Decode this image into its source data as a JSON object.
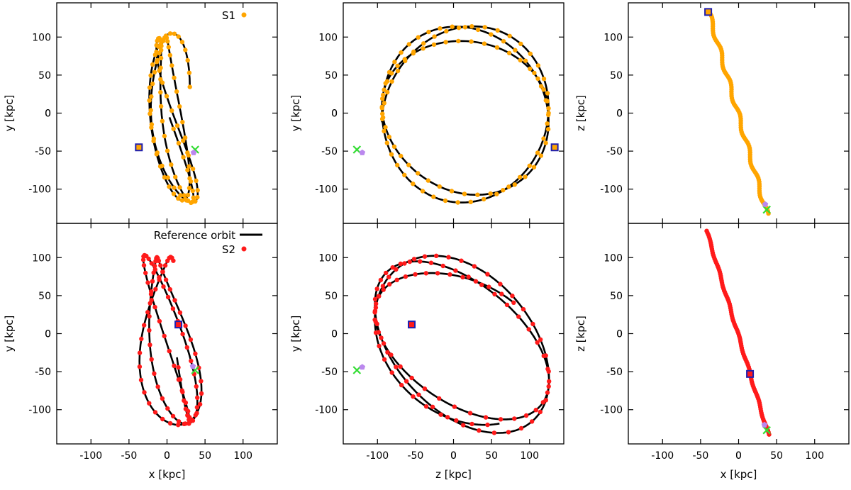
{
  "colors": {
    "s1": "#FFA500",
    "s2": "#FF1A1A",
    "reference": "#000000",
    "start_marker": "#1F1FB0",
    "end_marker": "#33DD33",
    "purple": "#BB88EE"
  },
  "legend": {
    "reference_label": "Reference orbit",
    "s1_label": "S1",
    "s2_label": "S2"
  },
  "chart_data": [
    {
      "type": "scatter",
      "panel": "top-left",
      "xlabel": "",
      "ylabel": "y [kpc]",
      "xlim": [
        -145,
        145
      ],
      "ylim": [
        -145,
        145
      ],
      "xticks": [
        -100,
        -50,
        0,
        50,
        100
      ],
      "yticks": [
        -100,
        -50,
        0,
        50,
        100
      ],
      "show_xticklabels": false,
      "series": [
        {
          "name": "S1",
          "orbit": {
            "a1": 70,
            "a2": 118,
            "a3": 60,
            "w": 3.2,
            "mode": "xy",
            "phase": 0.3
          }
        }
      ],
      "markers": {
        "start": [
          -37,
          -45
        ],
        "end_cross": [
          37,
          -48
        ],
        "end_purple": [
          35,
          -52
        ]
      }
    },
    {
      "type": "scatter",
      "panel": "top-middle",
      "xlabel": "",
      "ylabel": "y [kpc]",
      "xlim": [
        -145,
        145
      ],
      "ylim": [
        -145,
        145
      ],
      "xticks": [
        -100,
        -50,
        0,
        50,
        100
      ],
      "yticks": [
        -100,
        -50,
        0,
        50,
        100
      ],
      "show_xticklabels": false,
      "series": [
        {
          "name": "S1",
          "orbit": {
            "a1": 125,
            "a2": 120,
            "a3": 60,
            "w": 2.5,
            "mode": "zy",
            "phase": 0.0
          }
        }
      ],
      "markers": {
        "start": [
          133,
          -45
        ],
        "end_cross": [
          -127,
          -48
        ],
        "end_purple": [
          -120,
          -52
        ]
      }
    },
    {
      "type": "scatter",
      "panel": "top-right",
      "xlabel": "",
      "ylabel": "z [kpc]",
      "xlim": [
        -145,
        145
      ],
      "ylim": [
        -145,
        145
      ],
      "xticks": [
        -100,
        -50,
        0,
        50,
        100
      ],
      "yticks": [
        -100,
        -50,
        0,
        50,
        100
      ],
      "show_xticklabels": false,
      "series": [
        {
          "name": "S1",
          "orbit": {
            "line": true,
            "x0": -40,
            "y0": 135,
            "x1": 38,
            "y1": -135,
            "spread": 10
          }
        }
      ],
      "markers": {
        "start": [
          -40,
          133
        ],
        "end_cross": [
          37,
          -127
        ],
        "end_purple": [
          35,
          -120
        ]
      }
    },
    {
      "type": "scatter",
      "panel": "bottom-left",
      "xlabel": "x [kpc]",
      "ylabel": "y [kpc]",
      "xlim": [
        -145,
        145
      ],
      "ylim": [
        -145,
        145
      ],
      "xticks": [
        -100,
        -50,
        0,
        50,
        100
      ],
      "yticks": [
        -100,
        -50,
        0,
        50,
        100
      ],
      "show_xticklabels": true,
      "series": [
        {
          "name": "S2",
          "orbit": {
            "a1": 60,
            "a2": 120,
            "a3": 80,
            "w": 3.0,
            "mode": "xy",
            "phase": 1.2
          }
        }
      ],
      "markers": {
        "start": [
          15,
          12
        ],
        "end_cross": [
          37,
          -48
        ],
        "end_purple": [
          34,
          -43
        ]
      }
    },
    {
      "type": "scatter",
      "panel": "bottom-middle",
      "xlabel": "z [kpc]",
      "ylabel": "y [kpc]",
      "xlim": [
        -145,
        145
      ],
      "ylim": [
        -145,
        145
      ],
      "xticks": [
        -100,
        -50,
        0,
        50,
        100
      ],
      "yticks": [
        -100,
        -50,
        0,
        50,
        100
      ],
      "show_xticklabels": true,
      "series": [
        {
          "name": "S2",
          "orbit": {
            "a1": 130,
            "a2": 120,
            "a3": 80,
            "w": 2.7,
            "mode": "zy",
            "phase": 0.8
          }
        }
      ],
      "markers": {
        "start": [
          -55,
          12
        ],
        "end_cross": [
          -127,
          -48
        ],
        "end_purple": [
          -120,
          -44
        ]
      }
    },
    {
      "type": "scatter",
      "panel": "bottom-right",
      "xlabel": "x [kpc]",
      "ylabel": "z [kpc]",
      "xlim": [
        -145,
        145
      ],
      "ylim": [
        -145,
        145
      ],
      "xticks": [
        -100,
        -50,
        0,
        50,
        100
      ],
      "yticks": [
        -100,
        -50,
        0,
        50,
        100
      ],
      "show_xticklabels": true,
      "series": [
        {
          "name": "S2",
          "orbit": {
            "line": true,
            "x0": -42,
            "y0": 135,
            "x1": 40,
            "y1": -135,
            "spread": 4
          }
        }
      ],
      "markers": {
        "start": [
          15,
          -53
        ],
        "end_cross": [
          37,
          -127
        ],
        "end_purple": [
          34,
          -120
        ]
      }
    }
  ]
}
